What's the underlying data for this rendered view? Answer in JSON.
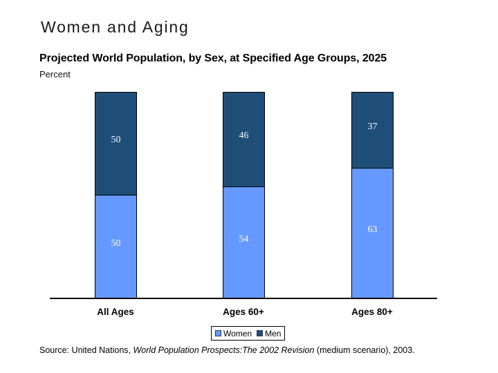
{
  "title": "Women and Aging",
  "chart_header": {
    "title": "Projected World Population, by Sex, at Specified Age Groups, 2025",
    "unit_label": "Percent"
  },
  "chart_data": {
    "type": "bar",
    "stacked": true,
    "title": "Projected World Population, by Sex, at Specified Age Groups, 2025",
    "xlabel": "",
    "ylabel": "Percent",
    "ylim": [
      0,
      100
    ],
    "grid": false,
    "legend_position": "bottom",
    "data_label_color": "#FFFFFF",
    "categories": [
      "All Ages",
      "Ages 60+",
      "Ages 80+"
    ],
    "series": [
      {
        "name": "Women",
        "color": "#6699FF",
        "values": [
          50,
          54,
          63
        ]
      },
      {
        "name": "Men",
        "color": "#1F4E79",
        "values": [
          50,
          46,
          37
        ]
      }
    ]
  },
  "legend": {
    "items": [
      {
        "label": "Women",
        "color": "#6699FF"
      },
      {
        "label": "Men",
        "color": "#1F4E79"
      }
    ]
  },
  "source": {
    "prefix": "Source: United Nations, ",
    "italic": "World Population Prospects:The 2002 Revision",
    "suffix": " (medium scenario), 2003."
  }
}
